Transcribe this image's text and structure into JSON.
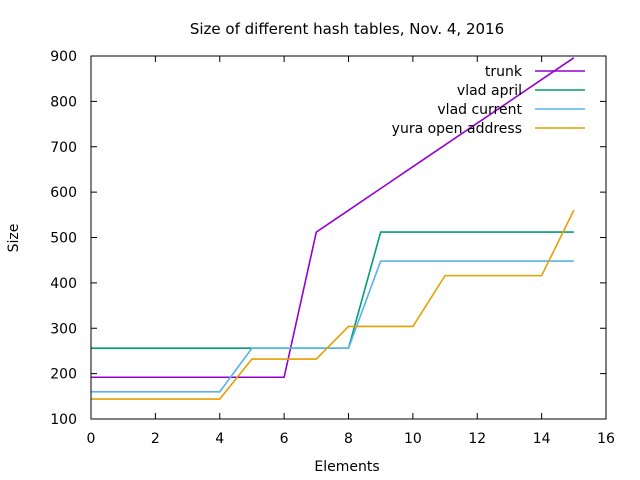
{
  "chart_data": {
    "type": "line",
    "title": "Size of different hash tables, Nov. 4, 2016",
    "xlabel": "Elements",
    "ylabel": "Size",
    "xlim": [
      0,
      16
    ],
    "ylim": [
      100,
      900
    ],
    "xticks": [
      0,
      2,
      4,
      6,
      8,
      10,
      12,
      14,
      16
    ],
    "yticks": [
      100,
      200,
      300,
      400,
      500,
      600,
      700,
      800,
      900
    ],
    "grid": false,
    "legend_position": "top-right",
    "x": [
      0,
      1,
      2,
      3,
      4,
      5,
      6,
      7,
      8,
      9,
      10,
      11,
      12,
      13,
      14,
      15
    ],
    "series": [
      {
        "name": "trunk",
        "color": "#9400d3",
        "values": [
          192,
          192,
          192,
          192,
          192,
          192,
          192,
          512,
          560,
          608,
          656,
          704,
          752,
          800,
          848,
          896
        ]
      },
      {
        "name": "vlad april",
        "color": "#009e73",
        "values": [
          256,
          256,
          256,
          256,
          256,
          256,
          256,
          256,
          256,
          512,
          512,
          512,
          512,
          512,
          512,
          512
        ]
      },
      {
        "name": "vlad current",
        "color": "#56b4e9",
        "values": [
          160,
          160,
          160,
          160,
          160,
          256,
          256,
          256,
          256,
          448,
          448,
          448,
          448,
          448,
          448,
          448
        ]
      },
      {
        "name": "yura open address",
        "color": "#e69f00",
        "values": [
          144,
          144,
          144,
          144,
          144,
          232,
          232,
          232,
          304,
          304,
          304,
          416,
          416,
          416,
          416,
          560
        ]
      }
    ]
  }
}
